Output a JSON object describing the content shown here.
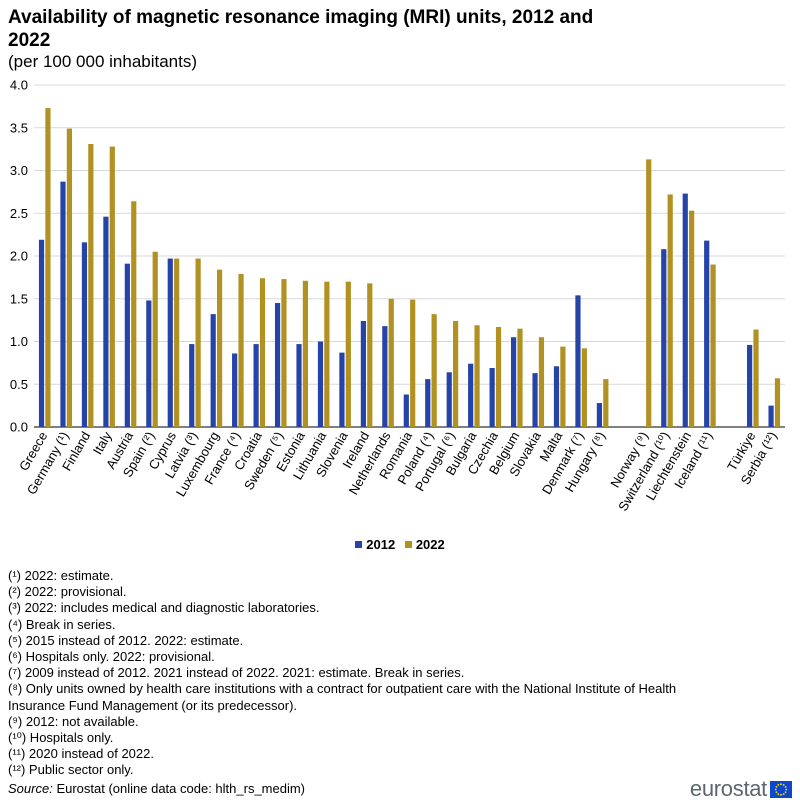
{
  "title": "Availability of magnetic resonance imaging (MRI) units, 2012 and 2022",
  "subtitle": "(per 100 000 inhabitants)",
  "colors": {
    "s2012": "#2644a8",
    "s2022": "#b09122",
    "grid": "#d9d9d9",
    "axis": "#000000"
  },
  "legend": {
    "items": [
      "2012",
      "2022"
    ]
  },
  "chart_data": {
    "type": "bar",
    "title": "Availability of magnetic resonance imaging (MRI) units, 2012 and 2022",
    "subtitle": "(per 100 000 inhabitants)",
    "ylim": [
      0,
      4.0
    ],
    "yticks": [
      "4.0",
      "3.5",
      "3.0",
      "2.5",
      "2.0",
      "1.5",
      "1.0",
      "0.5",
      "0.0"
    ],
    "grid": true,
    "legend_position": "bottom-center",
    "categories": [
      "Greece",
      "Germany (¹)",
      "Finland",
      "Italy",
      "Austria",
      "Spain (²)",
      "Cyprus",
      "Latvia (³)",
      "Luxembourg",
      "France (⁴)",
      "Croatia",
      "Sweden (⁵)",
      "Estonia",
      "Lithuania",
      "Slovenia",
      "Ireland",
      "Netherlands",
      "Romania",
      "Poland (⁴)",
      "Portugal (⁶)",
      "Bulgaria",
      "Czechia",
      "Belgium",
      "Slovakia",
      "Malta",
      "Denmark (⁷)",
      "Hungary (⁸)",
      "",
      "Norway (⁹)",
      "Switzerland (¹⁰)",
      "Liechtenstein",
      "Iceland (¹¹)",
      "",
      "Türkiye",
      "Serbia (¹²)"
    ],
    "series": [
      {
        "name": "2012",
        "values": [
          2.19,
          2.87,
          2.16,
          2.46,
          1.91,
          1.48,
          1.97,
          0.97,
          1.32,
          0.86,
          0.97,
          1.45,
          0.97,
          1.0,
          0.87,
          1.24,
          1.18,
          0.38,
          0.56,
          0.64,
          0.74,
          0.69,
          1.05,
          0.63,
          0.71,
          1.54,
          0.28,
          null,
          null,
          2.08,
          2.73,
          2.18,
          null,
          0.96,
          0.25
        ]
      },
      {
        "name": "2022",
        "values": [
          3.73,
          3.49,
          3.31,
          3.28,
          2.64,
          2.05,
          1.97,
          1.97,
          1.84,
          1.79,
          1.74,
          1.73,
          1.71,
          1.7,
          1.7,
          1.68,
          1.5,
          1.49,
          1.32,
          1.24,
          1.19,
          1.17,
          1.15,
          1.05,
          0.94,
          0.92,
          0.56,
          null,
          3.13,
          2.72,
          2.53,
          1.9,
          null,
          1.14,
          0.57
        ]
      }
    ]
  },
  "footnotes": [
    "(¹) 2022: estimate.",
    "(²) 2022: provisional.",
    "(³) 2022: includes medical and diagnostic laboratories.",
    "(⁴) Break in series.",
    "(⁵) 2015 instead of 2012. 2022: estimate.",
    "(⁶) Hospitals only. 2022: provisional.",
    "(⁷) 2009 instead of 2012. 2021 instead of 2022. 2021: estimate. Break in series.",
    "(⁸) Only units owned by health care institutions with a contract for outpatient care with the National Institute of Health Insurance Fund Management (or its predecessor).",
    "(⁹) 2012: not available.",
    "(¹⁰) Hospitals only.",
    "(¹¹) 2020 instead of 2022.",
    "(¹²) Public sector only."
  ],
  "source": {
    "label": "Source:",
    "text": "Eurostat (online data code: hlth_rs_medim)"
  },
  "logo": {
    "text": "eurostat"
  }
}
